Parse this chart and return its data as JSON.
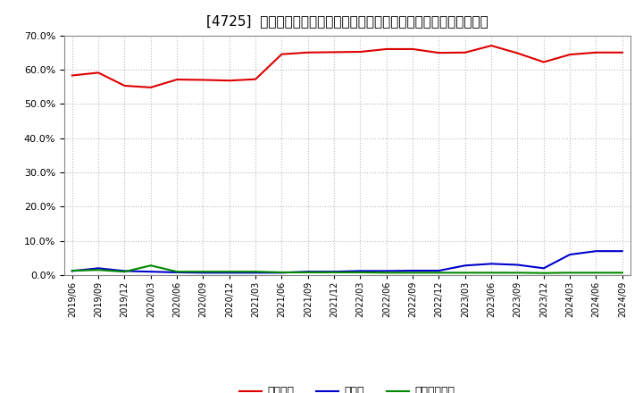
{
  "title": "[4725]  自己資本、のれん、繰延税金資産の総資産に対する比率の推移",
  "ylim": [
    0.0,
    0.7
  ],
  "yticks": [
    0.0,
    0.1,
    0.2,
    0.3,
    0.4,
    0.5,
    0.6,
    0.7
  ],
  "dates": [
    "2019/06",
    "2019/09",
    "2019/12",
    "2020/03",
    "2020/06",
    "2020/09",
    "2020/12",
    "2021/03",
    "2021/06",
    "2021/09",
    "2021/12",
    "2022/03",
    "2022/06",
    "2022/09",
    "2022/12",
    "2023/03",
    "2023/06",
    "2023/09",
    "2023/12",
    "2024/03",
    "2024/06",
    "2024/09"
  ],
  "self_capital": [
    0.583,
    0.591,
    0.553,
    0.548,
    0.571,
    0.57,
    0.568,
    0.572,
    0.645,
    0.65,
    0.651,
    0.652,
    0.66,
    0.66,
    0.649,
    0.65,
    0.67,
    0.648,
    0.622,
    0.644,
    0.65,
    0.65
  ],
  "noren": [
    0.012,
    0.02,
    0.012,
    0.01,
    0.008,
    0.007,
    0.007,
    0.007,
    0.007,
    0.01,
    0.01,
    0.012,
    0.012,
    0.013,
    0.013,
    0.028,
    0.033,
    0.03,
    0.02,
    0.06,
    0.07,
    0.07
  ],
  "deferred_tax": [
    0.013,
    0.015,
    0.01,
    0.028,
    0.01,
    0.01,
    0.01,
    0.01,
    0.008,
    0.008,
    0.008,
    0.008,
    0.007,
    0.007,
    0.007,
    0.007,
    0.007,
    0.007,
    0.006,
    0.007,
    0.007,
    0.007
  ],
  "self_capital_color": "#dd0000",
  "noren_color": "#0000cc",
  "deferred_tax_color": "#008800",
  "legend_label_equity": "自己資本",
  "legend_label_noren": "のれん",
  "legend_label_deferred": "繰延税金資産",
  "background_color": "#ffffff",
  "grid_color": "#aaaaaa",
  "title_fontsize": 11,
  "tick_fontsize": 8,
  "legend_fontsize": 9
}
